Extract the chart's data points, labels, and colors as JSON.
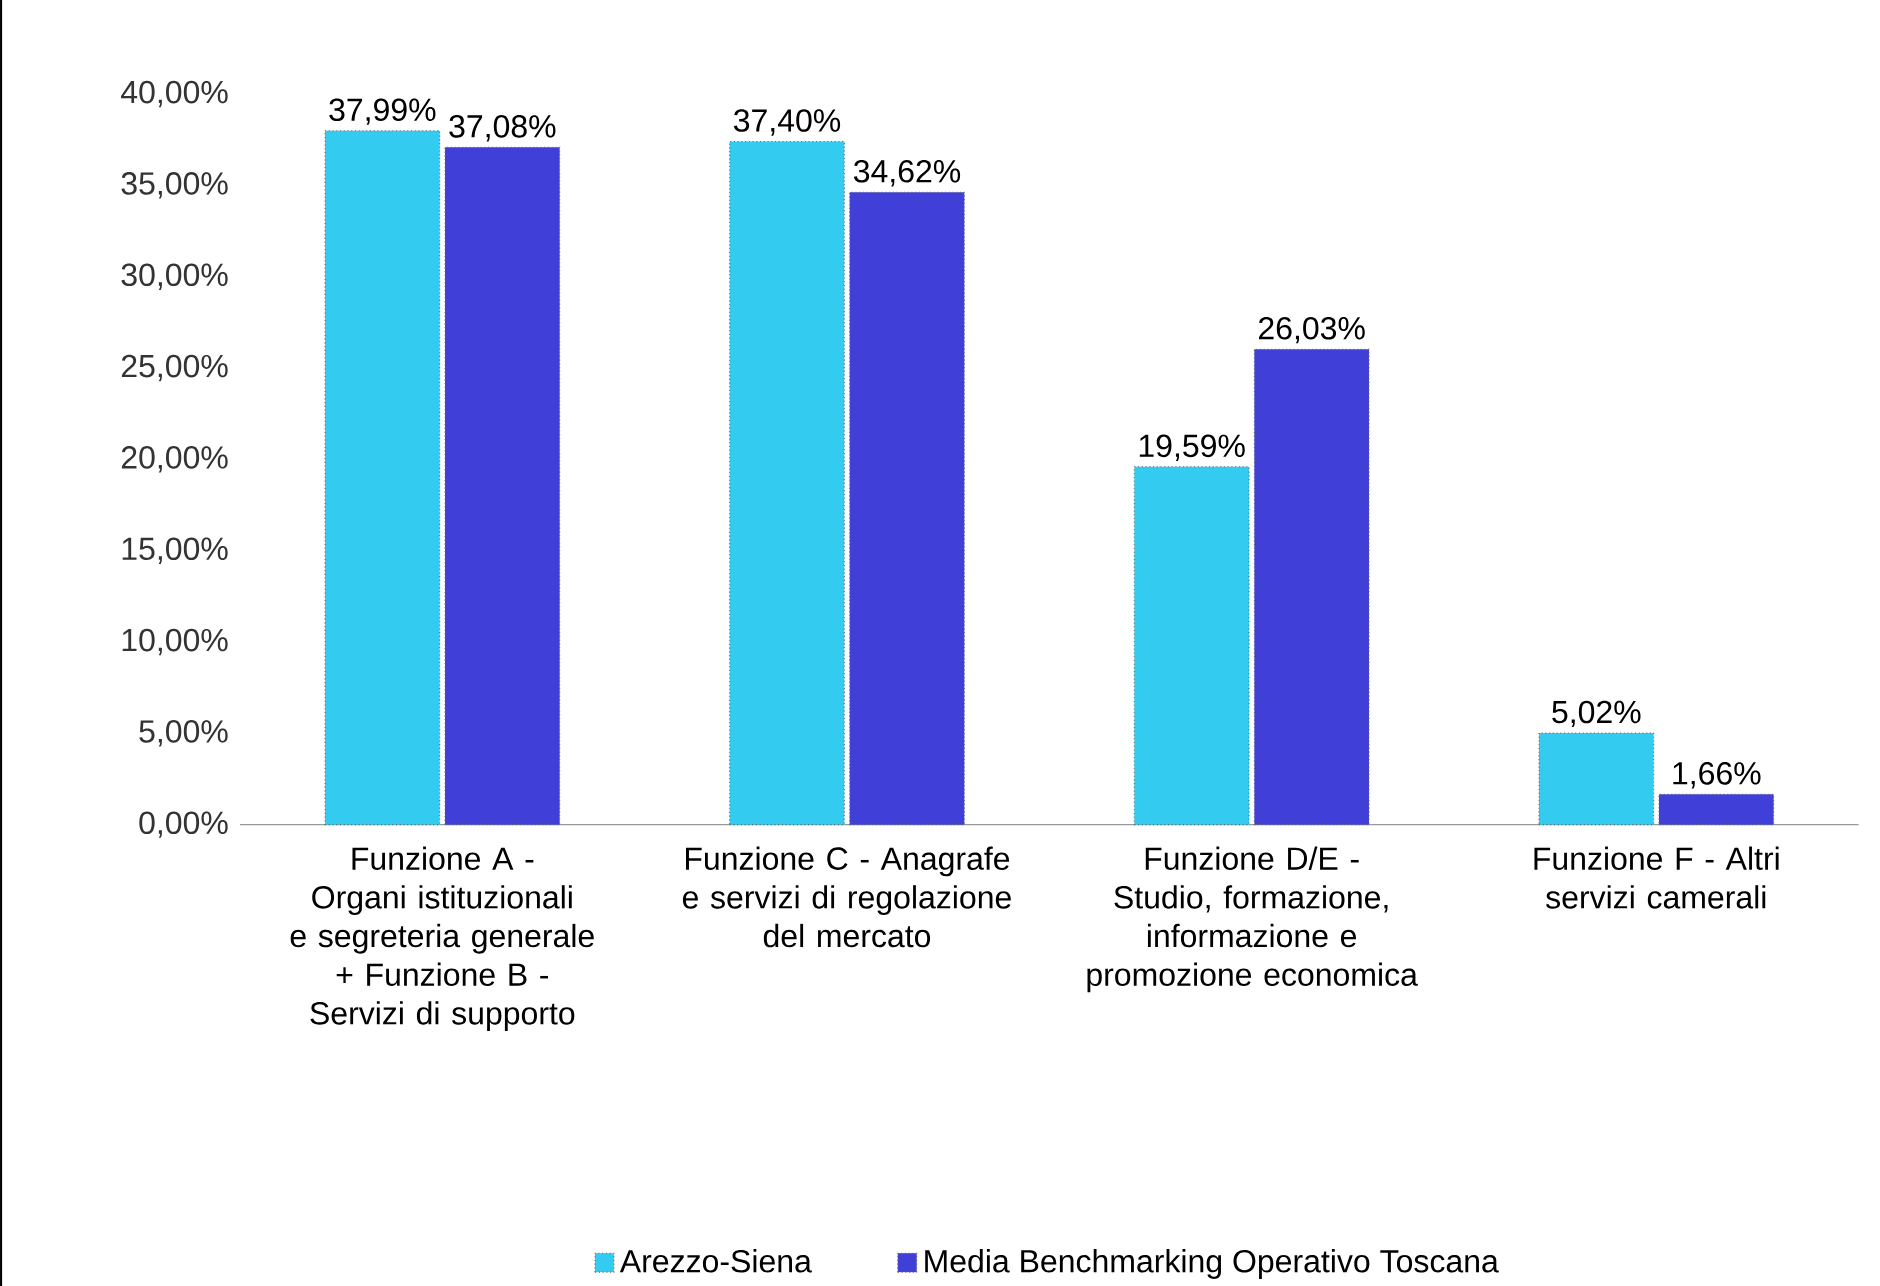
{
  "chart_data": {
    "type": "bar",
    "categories": [
      "Funzione A - Organi istituzionali e segreteria generale + Funzione B - Servizi di supporto",
      "Funzione C - Anagrafe e servizi di regolazione del mercato",
      "Funzione D/E - Studio, formazione, informazione e promozione economica",
      "Funzione F - Altri servizi camerali"
    ],
    "series": [
      {
        "name": "Arezzo-Siena",
        "color": "#33ccf0",
        "values": [
          37.99,
          37.4,
          19.59,
          5.02
        ],
        "value_labels": [
          "37,99%",
          "37,40%",
          "19,59%",
          "5,02%"
        ]
      },
      {
        "name": "Media Benchmarking Operativo Toscana",
        "color": "#4040d8",
        "values": [
          37.08,
          34.62,
          26.03,
          1.66
        ],
        "value_labels": [
          "37,08%",
          "34,62%",
          "26,03%",
          "1,66%"
        ]
      }
    ],
    "ylim": [
      0,
      40
    ],
    "yticks": [
      {
        "value": 0,
        "label": "0,00%"
      },
      {
        "value": 5,
        "label": "5,00%"
      },
      {
        "value": 10,
        "label": "10,00%"
      },
      {
        "value": 15,
        "label": "15,00%"
      },
      {
        "value": 20,
        "label": "20,00%"
      },
      {
        "value": 25,
        "label": "25,00%"
      },
      {
        "value": 30,
        "label": "30,00%"
      },
      {
        "value": 35,
        "label": "35,00%"
      },
      {
        "value": 40,
        "label": "40,00%"
      }
    ],
    "grid": false,
    "legend": "bottom"
  }
}
